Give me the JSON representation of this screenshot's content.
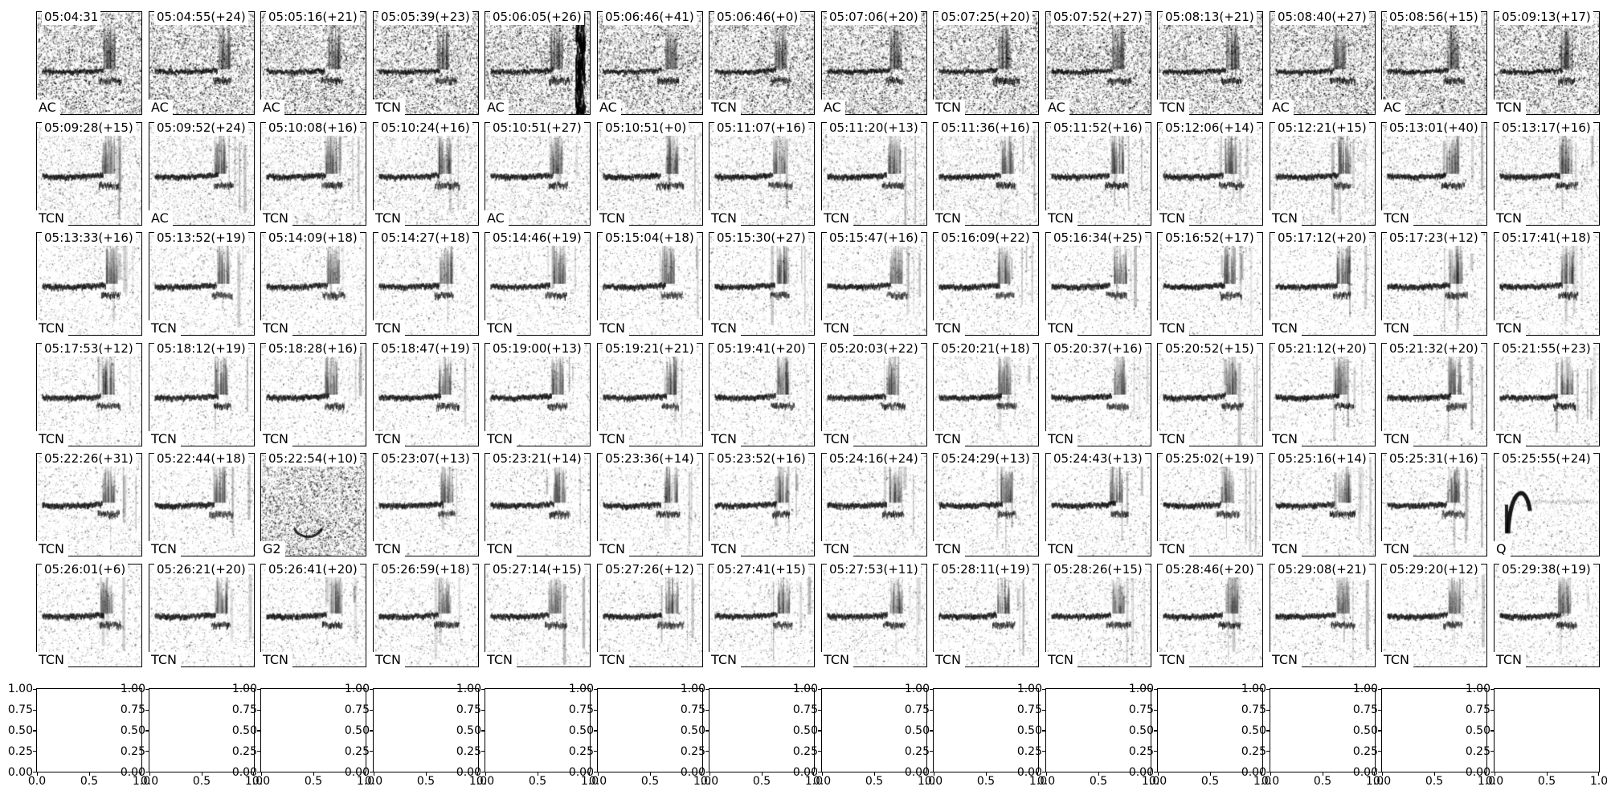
{
  "chart_data": {
    "type": "heatmap",
    "title": "",
    "description_visible_content_only": "Grid of 6 rows x 14 columns of grayscale spectrogram thumbnails, each with a timestamp at top-left and a classifier label at bottom-left, plus one bottom row of 14 empty axes panels.",
    "rows": [
      {
        "panels": [
          {
            "time": "05:04:31",
            "label": "AC",
            "pattern": "noisy"
          },
          {
            "time": "05:04:55(+24)",
            "label": "AC",
            "pattern": "noisy"
          },
          {
            "time": "05:05:16(+21)",
            "label": "AC",
            "pattern": "noisy"
          },
          {
            "time": "05:05:39(+23)",
            "label": "TCN",
            "pattern": "noisy"
          },
          {
            "time": "05:06:05(+26)",
            "label": "AC",
            "pattern": "noisy-vbar"
          },
          {
            "time": "05:06:46(+41)",
            "label": "AC",
            "pattern": "noisy"
          },
          {
            "time": "05:06:46(+0)",
            "label": "TCN",
            "pattern": "noisy"
          },
          {
            "time": "05:07:06(+20)",
            "label": "AC",
            "pattern": "noisy"
          },
          {
            "time": "05:07:25(+20)",
            "label": "TCN",
            "pattern": "noisy"
          },
          {
            "time": "05:07:52(+27)",
            "label": "AC",
            "pattern": "noisy"
          },
          {
            "time": "05:08:13(+21)",
            "label": "TCN",
            "pattern": "noisy"
          },
          {
            "time": "05:08:40(+27)",
            "label": "AC",
            "pattern": "noisy"
          },
          {
            "time": "05:08:56(+15)",
            "label": "AC",
            "pattern": "noisy"
          },
          {
            "time": "05:09:13(+17)",
            "label": "TCN",
            "pattern": "noisy"
          }
        ]
      },
      {
        "panels": [
          {
            "time": "05:09:28(+15)",
            "label": "TCN",
            "pattern": "clean"
          },
          {
            "time": "05:09:52(+24)",
            "label": "AC",
            "pattern": "clean"
          },
          {
            "time": "05:10:08(+16)",
            "label": "TCN",
            "pattern": "clean"
          },
          {
            "time": "05:10:24(+16)",
            "label": "TCN",
            "pattern": "clean"
          },
          {
            "time": "05:10:51(+27)",
            "label": "AC",
            "pattern": "clean"
          },
          {
            "time": "05:10:51(+0)",
            "label": "TCN",
            "pattern": "clean"
          },
          {
            "time": "05:11:07(+16)",
            "label": "TCN",
            "pattern": "clean"
          },
          {
            "time": "05:11:20(+13)",
            "label": "TCN",
            "pattern": "clean"
          },
          {
            "time": "05:11:36(+16)",
            "label": "TCN",
            "pattern": "clean"
          },
          {
            "time": "05:11:52(+16)",
            "label": "TCN",
            "pattern": "clean"
          },
          {
            "time": "05:12:06(+14)",
            "label": "TCN",
            "pattern": "clean"
          },
          {
            "time": "05:12:21(+15)",
            "label": "TCN",
            "pattern": "clean"
          },
          {
            "time": "05:13:01(+40)",
            "label": "TCN",
            "pattern": "clean"
          },
          {
            "time": "05:13:17(+16)",
            "label": "TCN",
            "pattern": "clean"
          }
        ]
      },
      {
        "panels": [
          {
            "time": "05:13:33(+16)",
            "label": "TCN",
            "pattern": "clean"
          },
          {
            "time": "05:13:52(+19)",
            "label": "TCN",
            "pattern": "clean"
          },
          {
            "time": "05:14:09(+18)",
            "label": "TCN",
            "pattern": "clean"
          },
          {
            "time": "05:14:27(+18)",
            "label": "TCN",
            "pattern": "clean"
          },
          {
            "time": "05:14:46(+19)",
            "label": "TCN",
            "pattern": "clean"
          },
          {
            "time": "05:15:04(+18)",
            "label": "TCN",
            "pattern": "clean"
          },
          {
            "time": "05:15:30(+27)",
            "label": "TCN",
            "pattern": "clean"
          },
          {
            "time": "05:15:47(+16)",
            "label": "TCN",
            "pattern": "clean"
          },
          {
            "time": "05:16:09(+22)",
            "label": "TCN",
            "pattern": "clean"
          },
          {
            "time": "05:16:34(+25)",
            "label": "TCN",
            "pattern": "clean"
          },
          {
            "time": "05:16:52(+17)",
            "label": "TCN",
            "pattern": "clean"
          },
          {
            "time": "05:17:12(+20)",
            "label": "TCN",
            "pattern": "clean"
          },
          {
            "time": "05:17:23(+12)",
            "label": "TCN",
            "pattern": "clean"
          },
          {
            "time": "05:17:41(+18)",
            "label": "TCN",
            "pattern": "clean"
          }
        ]
      },
      {
        "panels": [
          {
            "time": "05:17:53(+12)",
            "label": "TCN",
            "pattern": "clean"
          },
          {
            "time": "05:18:12(+19)",
            "label": "TCN",
            "pattern": "clean"
          },
          {
            "time": "05:18:28(+16)",
            "label": "TCN",
            "pattern": "clean"
          },
          {
            "time": "05:18:47(+19)",
            "label": "TCN",
            "pattern": "clean"
          },
          {
            "time": "05:19:00(+13)",
            "label": "TCN",
            "pattern": "clean"
          },
          {
            "time": "05:19:21(+21)",
            "label": "TCN",
            "pattern": "clean"
          },
          {
            "time": "05:19:41(+20)",
            "label": "TCN",
            "pattern": "clean"
          },
          {
            "time": "05:20:03(+22)",
            "label": "TCN",
            "pattern": "clean"
          },
          {
            "time": "05:20:21(+18)",
            "label": "TCN",
            "pattern": "clean"
          },
          {
            "time": "05:20:37(+16)",
            "label": "TCN",
            "pattern": "clean"
          },
          {
            "time": "05:20:52(+15)",
            "label": "TCN",
            "pattern": "clean"
          },
          {
            "time": "05:21:12(+20)",
            "label": "TCN",
            "pattern": "clean"
          },
          {
            "time": "05:21:32(+20)",
            "label": "TCN",
            "pattern": "clean"
          },
          {
            "time": "05:21:55(+23)",
            "label": "TCN",
            "pattern": "clean"
          }
        ]
      },
      {
        "panels": [
          {
            "time": "05:22:26(+31)",
            "label": "TCN",
            "pattern": "clean"
          },
          {
            "time": "05:22:44(+18)",
            "label": "TCN",
            "pattern": "clean"
          },
          {
            "time": "05:22:54(+10)",
            "label": "G2",
            "pattern": "g2"
          },
          {
            "time": "05:23:07(+13)",
            "label": "TCN",
            "pattern": "clean"
          },
          {
            "time": "05:23:21(+14)",
            "label": "TCN",
            "pattern": "clean"
          },
          {
            "time": "05:23:36(+14)",
            "label": "TCN",
            "pattern": "clean"
          },
          {
            "time": "05:23:52(+16)",
            "label": "TCN",
            "pattern": "clean"
          },
          {
            "time": "05:24:16(+24)",
            "label": "TCN",
            "pattern": "clean"
          },
          {
            "time": "05:24:29(+13)",
            "label": "TCN",
            "pattern": "clean"
          },
          {
            "time": "05:24:43(+13)",
            "label": "TCN",
            "pattern": "clean"
          },
          {
            "time": "05:25:02(+19)",
            "label": "TCN",
            "pattern": "clean"
          },
          {
            "time": "05:25:16(+14)",
            "label": "TCN",
            "pattern": "clean"
          },
          {
            "time": "05:25:31(+16)",
            "label": "TCN",
            "pattern": "clean"
          },
          {
            "time": "05:25:55(+24)",
            "label": "Q",
            "pattern": "q"
          }
        ]
      },
      {
        "panels": [
          {
            "time": "05:26:01(+6)",
            "label": "TCN",
            "pattern": "clean"
          },
          {
            "time": "05:26:21(+20)",
            "label": "TCN",
            "pattern": "clean"
          },
          {
            "time": "05:26:41(+20)",
            "label": "TCN",
            "pattern": "clean"
          },
          {
            "time": "05:26:59(+18)",
            "label": "TCN",
            "pattern": "clean"
          },
          {
            "time": "05:27:14(+15)",
            "label": "TCN",
            "pattern": "clean"
          },
          {
            "time": "05:27:26(+12)",
            "label": "TCN",
            "pattern": "clean"
          },
          {
            "time": "05:27:41(+15)",
            "label": "TCN",
            "pattern": "clean"
          },
          {
            "time": "05:27:53(+11)",
            "label": "TCN",
            "pattern": "clean"
          },
          {
            "time": "05:28:11(+19)",
            "label": "TCN",
            "pattern": "clean"
          },
          {
            "time": "05:28:26(+15)",
            "label": "TCN",
            "pattern": "clean"
          },
          {
            "time": "05:28:46(+20)",
            "label": "TCN",
            "pattern": "clean"
          },
          {
            "time": "05:29:08(+21)",
            "label": "TCN",
            "pattern": "clean"
          },
          {
            "time": "05:29:20(+12)",
            "label": "TCN",
            "pattern": "clean"
          },
          {
            "time": "05:29:38(+19)",
            "label": "TCN",
            "pattern": "clean"
          }
        ]
      }
    ],
    "axes_row": {
      "y_ticks": [
        "1.00",
        "0.75",
        "0.50",
        "0.25",
        "0.00"
      ],
      "x_ticks": [
        "0.0",
        "0.5",
        "1.0"
      ],
      "ylim": [
        0.0,
        1.0
      ],
      "xlim": [
        0.0,
        1.0
      ],
      "panel_count": 14
    },
    "colors": {
      "background": "#ffffff",
      "spine": "#000000",
      "spectrogram_ink": "#000000"
    }
  }
}
